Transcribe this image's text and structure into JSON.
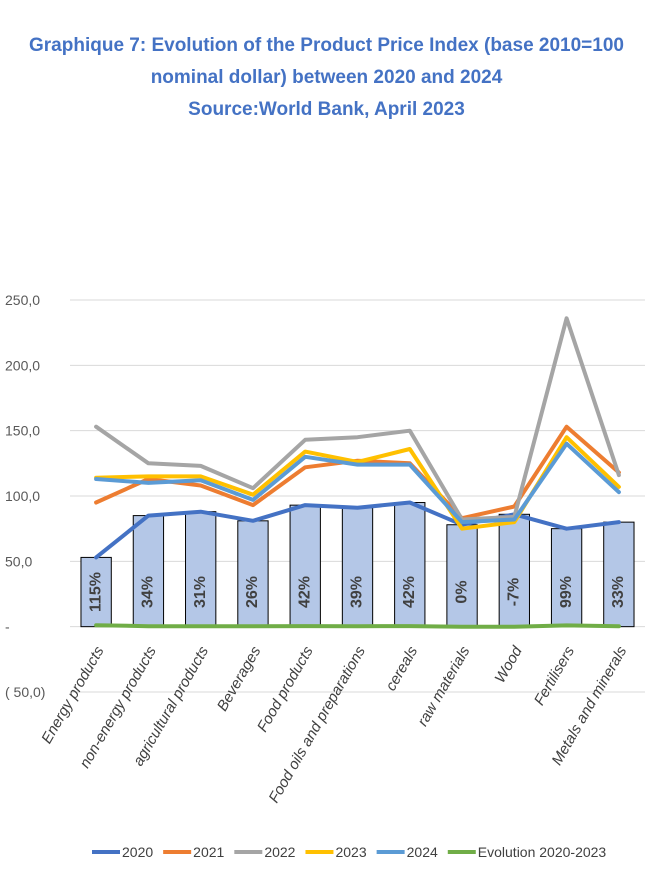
{
  "chart_data": {
    "type": "line",
    "title_lines": [
      "Graphique 7: Evolution of the Product Price Index (base 2010=100",
      "nominal dollar) between 2020 and 2024",
      "Source:World Bank, April 2023"
    ],
    "categories": [
      "Energy products",
      "non-energy products",
      "agricultural products",
      "Beverages",
      "Food products",
      "Food oils and preparations",
      "cereals",
      "raw materials",
      "Wood",
      "Fertilisers",
      "Metals and minerals"
    ],
    "ylim": [
      -50,
      250
    ],
    "yticks": [
      -50,
      0,
      50,
      100,
      150,
      200,
      250
    ],
    "ytick_labels": [
      "( 50,0)",
      "-",
      "50,0",
      "100,0",
      "150,0",
      "200,0",
      "250,0"
    ],
    "grid": true,
    "legend_position": "bottom",
    "series": [
      {
        "name": "2020",
        "color": "#4472C4",
        "values": [
          53,
          85,
          88,
          81,
          93,
          91,
          95,
          78,
          86,
          75,
          80
        ]
      },
      {
        "name": "2021",
        "color": "#ED7D31",
        "values": [
          95,
          113,
          108,
          93,
          122,
          127,
          125,
          83,
          92,
          153,
          118
        ]
      },
      {
        "name": "2022",
        "color": "#A5A5A5",
        "values": [
          153,
          125,
          123,
          106,
          143,
          145,
          150,
          82,
          84,
          236,
          116
        ]
      },
      {
        "name": "2023",
        "color": "#FFC000",
        "values": [
          114,
          115,
          115,
          101,
          134,
          126,
          136,
          75,
          80,
          145,
          107
        ]
      },
      {
        "name": "2024",
        "color": "#5B9BD5",
        "values": [
          113,
          110,
          112,
          97,
          130,
          124,
          124,
          80,
          82,
          140,
          103
        ]
      },
      {
        "name": "Evolution 2020-2023",
        "color": "#70AD47",
        "values": [
          1.15,
          0.34,
          0.31,
          0.26,
          0.42,
          0.39,
          0.42,
          0.0,
          -0.07,
          0.99,
          0.33
        ]
      }
    ],
    "bars": {
      "color": "#B4C7E7",
      "values": [
        53,
        85,
        88,
        81,
        93,
        91,
        95,
        78,
        86,
        75,
        80
      ],
      "labels": [
        "115%",
        "34%",
        "31%",
        "26%",
        "42%",
        "39%",
        "42%",
        "0%",
        "-7%",
        "99%",
        "33%"
      ]
    }
  }
}
